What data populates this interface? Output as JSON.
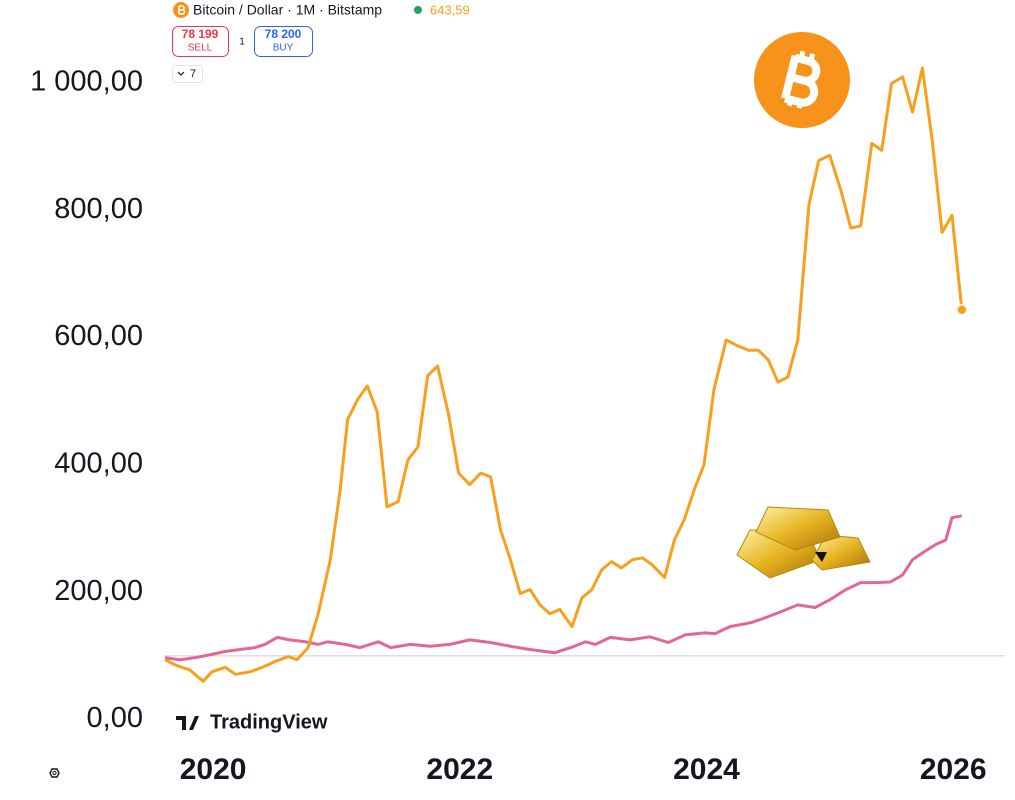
{
  "header": {
    "symbol": "Bitcoin / Dollar · 1M · Bitstamp",
    "price": "643,59",
    "sell_price": "78 199",
    "sell": "SELL",
    "spread": "1",
    "buy_price": "78 200",
    "buy": "BUY",
    "indicators": "7"
  },
  "chart_data": {
    "type": "line",
    "watermark": "TradingView",
    "xlim": [
      2019.61,
      2026.42
    ],
    "xticks": [
      2020,
      2022,
      2024,
      2026
    ],
    "ylim": [
      -40,
      1130
    ],
    "yticks": [
      {
        "value": 0,
        "label": "0,00"
      },
      {
        "value": 200,
        "label": "200,00"
      },
      {
        "value": 400,
        "label": "400,00"
      },
      {
        "value": 600,
        "label": "600,00"
      },
      {
        "value": 800,
        "label": "800,00"
      },
      {
        "value": 1000,
        "label": "1 000,00"
      }
    ],
    "reference_line": 100,
    "series": [
      {
        "color": "#f7a01d",
        "x": [
          2019.61,
          2019.69,
          2019.81,
          2019.92,
          2019.99,
          2020.1,
          2020.18,
          2020.3,
          2020.4,
          2020.5,
          2020.61,
          2020.68,
          2020.77,
          2020.85,
          2020.95,
          2021.03,
          2021.09,
          2021.17,
          2021.25,
          2021.33,
          2021.41,
          2021.5,
          2021.58,
          2021.66,
          2021.74,
          2021.82,
          2021.91,
          2021.99,
          2022.08,
          2022.17,
          2022.25,
          2022.33,
          2022.41,
          2022.49,
          2022.57,
          2022.65,
          2022.73,
          2022.81,
          2022.91,
          2022.99,
          2023.07,
          2023.15,
          2023.23,
          2023.31,
          2023.4,
          2023.48,
          2023.56,
          2023.66,
          2023.74,
          2023.82,
          2023.9,
          2023.98,
          2024.06,
          2024.16,
          2024.24,
          2024.34,
          2024.42,
          2024.5,
          2024.58,
          2024.66,
          2024.74,
          2024.83,
          2024.91,
          2025.0,
          2025.09,
          2025.17,
          2025.25,
          2025.34,
          2025.42,
          2025.5,
          2025.59,
          2025.67,
          2025.75,
          2025.83,
          2025.91,
          2025.99,
          2026.07
        ],
        "values": [
          94,
          86,
          78,
          60,
          75,
          82,
          71,
          75,
          82,
          91,
          99,
          94,
          113,
          165,
          251,
          361,
          471,
          502,
          524,
          483,
          334,
          342,
          408,
          428,
          540,
          555,
          478,
          387,
          369,
          387,
          381,
          298,
          251,
          198,
          204,
          180,
          166,
          173,
          146,
          191,
          204,
          235,
          248,
          238,
          251,
          254,
          243,
          223,
          282,
          314,
          361,
          400,
          518,
          596,
          588,
          580,
          580,
          565,
          530,
          538,
          596,
          808,
          878,
          886,
          831,
          772,
          775,
          905,
          894,
          999,
          1009,
          954,
          1023,
          910,
          765,
          792,
          643.59
        ]
      },
      {
        "color": "#e0679a",
        "x": [
          2019.61,
          2019.73,
          2019.85,
          2019.98,
          2020.1,
          2020.22,
          2020.34,
          2020.42,
          2020.52,
          2020.62,
          2020.75,
          2020.85,
          2020.93,
          2021.07,
          2021.19,
          2021.34,
          2021.44,
          2021.6,
          2021.76,
          2021.92,
          2022.08,
          2022.25,
          2022.41,
          2022.57,
          2022.77,
          2022.9,
          2023.02,
          2023.1,
          2023.22,
          2023.38,
          2023.54,
          2023.69,
          2023.83,
          2023.99,
          2024.07,
          2024.19,
          2024.36,
          2024.48,
          2024.6,
          2024.74,
          2024.88,
          2025.0,
          2025.13,
          2025.25,
          2025.37,
          2025.49,
          2025.59,
          2025.67,
          2025.77,
          2025.86,
          2025.94,
          2025.99,
          2026.07
        ],
        "values": [
          97,
          94,
          97,
          102,
          107,
          110,
          113,
          118,
          129,
          125,
          122,
          118,
          122,
          118,
          113,
          122,
          113,
          118,
          115,
          118,
          125,
          121,
          115,
          110,
          105,
          113,
          122,
          118,
          129,
          125,
          130,
          121,
          133,
          136,
          135,
          146,
          152,
          160,
          169,
          180,
          176,
          188,
          204,
          215,
          215,
          216,
          227,
          251,
          264,
          275,
          282,
          317,
          320
        ]
      }
    ]
  }
}
